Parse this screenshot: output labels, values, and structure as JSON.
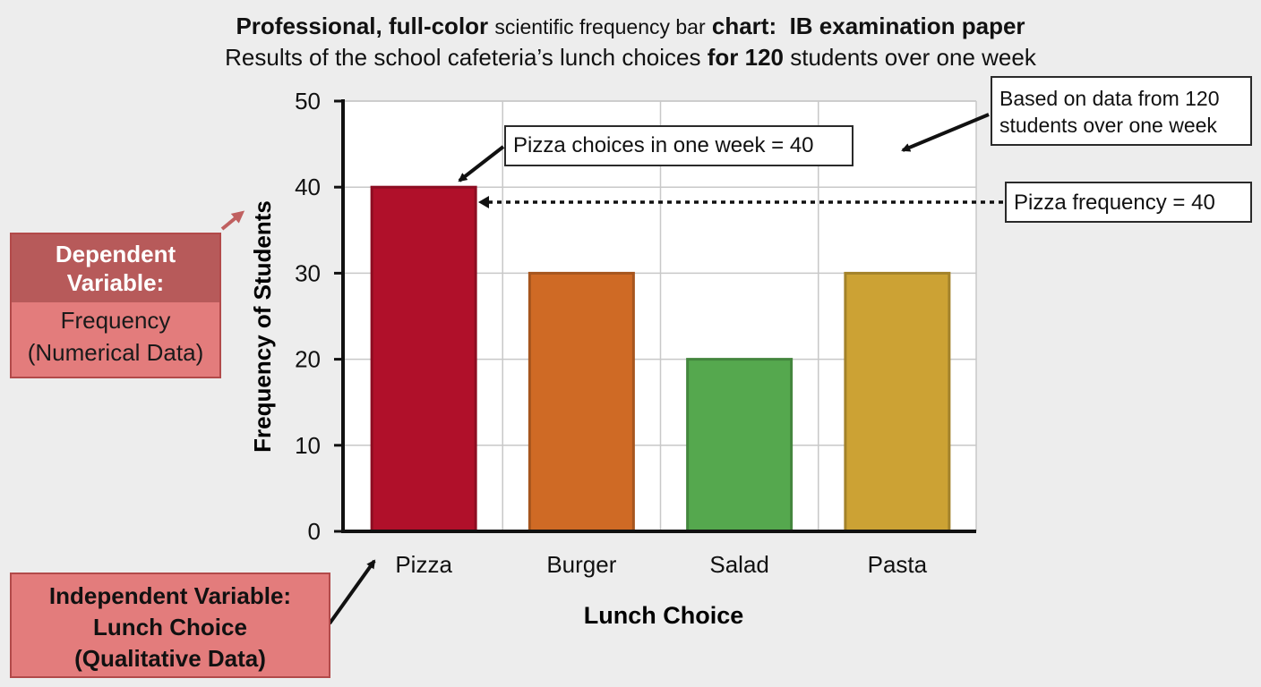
{
  "titles": {
    "line1_part1": "Professional, full-color",
    "line1_part2": "scientific frequency bar",
    "line1_part3": "chart:",
    "line1_part4": "IB examination paper",
    "line2_part1": "Results of the school cafeteria’s lunch choices",
    "line2_part2": "for 120",
    "line2_part3": "students over one week"
  },
  "annotations": {
    "pizza_choice": "Pizza choices in one week = 40",
    "based_line1": "Based on data from 120",
    "based_line2": "students over one week",
    "pizza_frequency": "Pizza frequency = 40"
  },
  "variables": {
    "dependent_head_1": "Dependent",
    "dependent_head_2": "Variable:",
    "dependent_body_1": "Frequency",
    "dependent_body_2": "(Numerical Data)",
    "independent_1": "Independent Variable:",
    "independent_2": "Lunch Choice",
    "independent_3": "(Qualitative Data)"
  },
  "colors": {
    "pizza": "#b0102a",
    "burger": "#cf6a25",
    "salad": "#55a84e",
    "pasta": "#cca234"
  },
  "chart_data": {
    "type": "bar",
    "categories": [
      "Pizza",
      "Burger",
      "Salad",
      "Pasta"
    ],
    "values": [
      40,
      30,
      20,
      30
    ],
    "xlabel": "Lunch Choice",
    "ylabel": "Frequency of Students",
    "ylim": [
      0,
      50
    ],
    "yticks": [
      0,
      10,
      20,
      30,
      40,
      50
    ],
    "grid": true
  }
}
